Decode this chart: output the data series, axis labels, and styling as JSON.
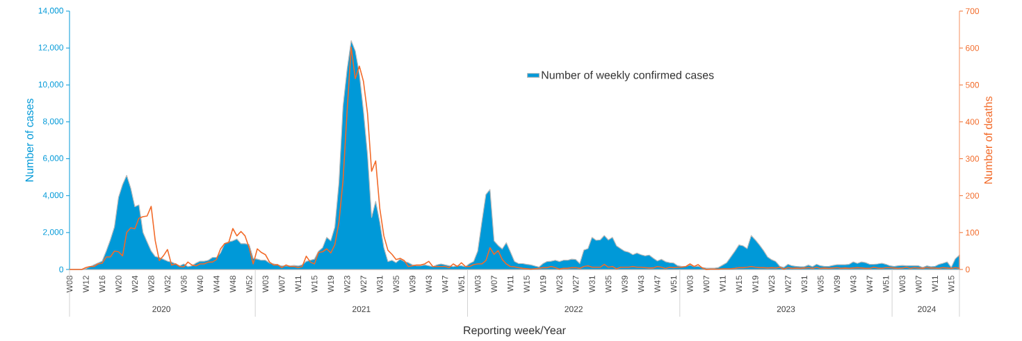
{
  "chart_data": {
    "type": "area",
    "xlabel": "Reporting week/Year",
    "ylabel": "Number of cases",
    "y2label": "Number of deaths",
    "categories": [
      "W08",
      null,
      null,
      null,
      "W12",
      null,
      null,
      null,
      "W16",
      null,
      null,
      null,
      "W20",
      null,
      null,
      null,
      "W24",
      null,
      null,
      null,
      "W28",
      null,
      null,
      null,
      "W32",
      null,
      null,
      null,
      "W36",
      null,
      null,
      null,
      "W40",
      null,
      null,
      null,
      "W44",
      null,
      null,
      null,
      "W48",
      null,
      null,
      null,
      "W52",
      null,
      null,
      null,
      "W03",
      null,
      null,
      null,
      "W07",
      null,
      null,
      null,
      "W11",
      null,
      null,
      null,
      "W15",
      null,
      null,
      null,
      "W19",
      null,
      null,
      null,
      "W23",
      null,
      null,
      null,
      "W27",
      null,
      null,
      null,
      "W31",
      null,
      null,
      null,
      "W35",
      null,
      null,
      null,
      "W39",
      null,
      null,
      null,
      "W43",
      null,
      null,
      null,
      "W47",
      null,
      null,
      null,
      "W51",
      null,
      null,
      null,
      "W03",
      null,
      null,
      null,
      "W07",
      null,
      null,
      null,
      "W11",
      null,
      null,
      null,
      "W15",
      null,
      null,
      null,
      "W19",
      null,
      null,
      null,
      "W23",
      null,
      null,
      null,
      "W27",
      null,
      null,
      null,
      "W31",
      null,
      null,
      null,
      "W35",
      null,
      null,
      null,
      "W39",
      null,
      null,
      null,
      "W43",
      null,
      null,
      null,
      "W47",
      null,
      null,
      null,
      "W51",
      null,
      null,
      null,
      "W03",
      null,
      null,
      null,
      "W07",
      null,
      null,
      null,
      "W11",
      null,
      null,
      null,
      "W15",
      null,
      null,
      null,
      "W19",
      null,
      null,
      null,
      "W23",
      null,
      null,
      null,
      "W27",
      null,
      null,
      null,
      "W31",
      null,
      null,
      null,
      "W35",
      null,
      null,
      null,
      "W39",
      null,
      null,
      null,
      "W43",
      null,
      null,
      null,
      "W47",
      null,
      null,
      null,
      "W51",
      null,
      null,
      null,
      "W03",
      null,
      null,
      null,
      "W07",
      null,
      null,
      null,
      "W11",
      null,
      null,
      null,
      "W15",
      null,
      null
    ],
    "series": [
      {
        "name": "Number of weekly confirmed cases",
        "color": "#0099d8",
        "values": [
          0,
          0,
          0,
          0,
          50,
          150,
          250,
          350,
          450,
          1000,
          1600,
          2300,
          3900,
          4600,
          5100,
          4400,
          3400,
          3500,
          2000,
          1500,
          1000,
          700,
          650,
          550,
          450,
          400,
          300,
          200,
          300,
          150,
          200,
          350,
          450,
          450,
          500,
          650,
          650,
          900,
          1400,
          1500,
          1550,
          1650,
          1400,
          1400,
          1350,
          600,
          560,
          500,
          500,
          350,
          300,
          250,
          190,
          190,
          190,
          220,
          190,
          250,
          440,
          500,
          560,
          990,
          1180,
          1740,
          1550,
          2300,
          4700,
          8840,
          10840,
          12400,
          11840,
          10590,
          8580,
          6210,
          2820,
          3690,
          2560,
          1180,
          430,
          500,
          370,
          560,
          430,
          370,
          250,
          200,
          200,
          250,
          200,
          150,
          250,
          300,
          250,
          200,
          150,
          200,
          200,
          150,
          320,
          430,
          1000,
          2560,
          4060,
          4330,
          1550,
          1300,
          1110,
          1450,
          950,
          430,
          320,
          320,
          280,
          250,
          190,
          130,
          320,
          430,
          450,
          500,
          430,
          500,
          500,
          560,
          540,
          320,
          1050,
          1130,
          1740,
          1580,
          1600,
          1840,
          1600,
          1740,
          1280,
          1130,
          990,
          930,
          800,
          890,
          800,
          740,
          780,
          610,
          460,
          550,
          420,
          370,
          350,
          200,
          170,
          170,
          240,
          150,
          170,
          110,
          70,
          70,
          70,
          110,
          240,
          370,
          680,
          990,
          1330,
          1280,
          1130,
          1840,
          1600,
          1330,
          1030,
          680,
          530,
          430,
          170,
          110,
          280,
          200,
          170,
          150,
          150,
          240,
          150,
          280,
          200,
          170,
          170,
          220,
          260,
          260,
          260,
          280,
          410,
          330,
          410,
          370,
          280,
          280,
          300,
          340,
          280,
          200,
          170,
          200,
          220,
          200,
          200,
          200,
          200,
          110,
          200,
          150,
          170,
          280,
          340,
          410,
          110,
          580,
          780
        ]
      },
      {
        "type": "line",
        "axis": "y2",
        "color": "#f26b2a",
        "values": [
          0,
          0,
          0,
          0,
          5,
          8,
          8,
          15,
          17,
          34,
          34,
          50,
          48,
          37,
          100,
          113,
          110,
          139,
          143,
          145,
          171,
          78,
          24,
          37,
          54,
          12,
          15,
          8,
          7,
          20,
          12,
          10,
          15,
          15,
          20,
          20,
          27,
          56,
          70,
          73,
          111,
          91,
          103,
          91,
          59,
          15,
          56,
          46,
          40,
          20,
          12,
          13,
          5,
          12,
          8,
          8,
          5,
          8,
          36,
          20,
          15,
          46,
          48,
          56,
          45,
          67,
          128,
          241,
          429,
          602,
          517,
          551,
          510,
          423,
          266,
          294,
          166,
          91,
          52,
          41,
          27,
          30,
          24,
          8,
          10,
          12,
          12,
          15,
          22,
          8,
          8,
          8,
          8,
          5,
          15,
          8,
          18,
          8,
          8,
          13,
          15,
          15,
          24,
          59,
          41,
          51,
          27,
          15,
          8,
          7,
          5,
          3,
          2,
          1,
          2,
          3,
          5,
          5,
          8,
          5,
          1,
          3,
          3,
          5,
          5,
          3,
          8,
          10,
          6,
          6,
          6,
          14,
          6,
          8,
          2,
          6,
          6,
          6,
          8,
          6,
          6,
          5,
          4,
          4,
          8,
          6,
          3,
          6,
          5,
          6,
          6,
          8,
          15,
          8,
          13,
          4,
          0,
          1,
          1,
          1,
          2,
          2,
          2,
          3,
          5,
          5,
          6,
          8,
          6,
          5,
          5,
          4,
          5,
          4,
          6,
          1,
          5,
          3,
          4,
          3,
          4,
          5,
          3,
          6,
          3,
          4,
          3,
          4,
          5,
          3,
          4,
          3,
          4,
          5,
          4,
          3,
          3,
          6,
          4,
          3,
          5,
          5,
          4,
          3,
          4,
          6,
          3,
          5,
          4,
          3,
          5,
          4,
          4,
          3,
          5,
          4,
          3,
          5,
          3
        ]
      }
    ],
    "ylim": [
      0,
      14000
    ],
    "yticks": [
      0,
      {
        "value": 2000,
        "label": "2,000"
      },
      {
        "value": 4000,
        "label": "4,000"
      },
      {
        "value": 6000,
        "label": "6,000"
      },
      {
        "value": 8000,
        "label": "8,000"
      },
      {
        "value": 10000,
        "label": "10,000"
      },
      {
        "value": 12000,
        "label": "12,000"
      },
      {
        "value": 14000,
        "label": "14,000"
      }
    ],
    "y2lim": [
      0,
      700
    ],
    "y2ticks": [
      0,
      100,
      200,
      300,
      400,
      500,
      600,
      700
    ],
    "annotations": [
      "2020",
      "2021",
      "2022",
      "2023",
      "2024"
    ],
    "legend": "top"
  }
}
